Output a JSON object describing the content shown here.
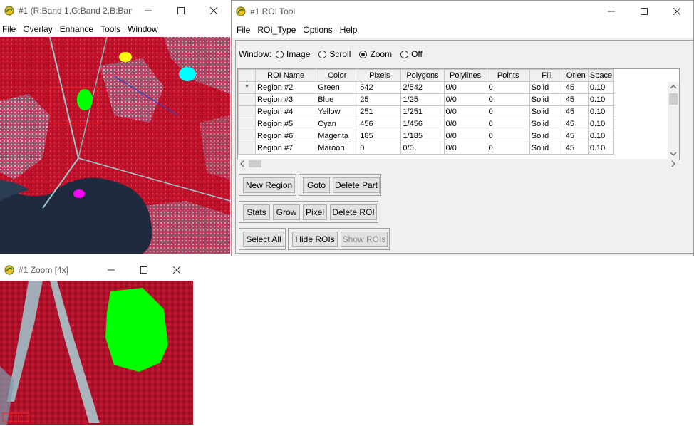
{
  "image_window": {
    "title": "#1 (R:Band 1,G:Band 2,B:Ban...",
    "menu": [
      "File",
      "Overlay",
      "Enhance",
      "Tools",
      "Window"
    ]
  },
  "zoom_window": {
    "title": "#1 Zoom [4x]"
  },
  "roi_window": {
    "title": "#1 ROI Tool",
    "menu": [
      "File",
      "ROI_Type",
      "Options",
      "Help"
    ],
    "window_label": "Window:",
    "window_options": [
      {
        "label": "Image",
        "selected": false
      },
      {
        "label": "Scroll",
        "selected": false
      },
      {
        "label": "Zoom",
        "selected": true
      },
      {
        "label": "Off",
        "selected": false
      }
    ],
    "columns": [
      "ROI Name",
      "Color",
      "Pixels",
      "Polygons",
      "Polylines",
      "Points",
      "Fill",
      "Orien",
      "Space"
    ],
    "current_row_marker": "*",
    "rows": [
      [
        "Region #2",
        "Green",
        "542",
        "2/542",
        "0/0",
        "0",
        "Solid",
        "45",
        "0.10"
      ],
      [
        "Region #3",
        "Blue",
        "25",
        "1/25",
        "0/0",
        "0",
        "Solid",
        "45",
        "0.10"
      ],
      [
        "Region #4",
        "Yellow",
        "251",
        "1/251",
        "0/0",
        "0",
        "Solid",
        "45",
        "0.10"
      ],
      [
        "Region #5",
        "Cyan",
        "456",
        "1/456",
        "0/0",
        "0",
        "Solid",
        "45",
        "0.10"
      ],
      [
        "Region #6",
        "Magenta",
        "185",
        "1/185",
        "0/0",
        "0",
        "Solid",
        "45",
        "0.10"
      ],
      [
        "Region #7",
        "Maroon",
        "0",
        "0/0",
        "0/0",
        "0",
        "Solid",
        "45",
        "0.10"
      ]
    ],
    "buttons": {
      "new_region": "New Region",
      "goto": "Goto",
      "delete_part": "Delete Part",
      "stats": "Stats",
      "grow": "Grow",
      "pixel": "Pixel",
      "delete_roi": "Delete ROI",
      "select_all": "Select All",
      "hide_rois": "Hide ROIs",
      "show_rois": "Show ROIs"
    }
  },
  "colors": {
    "vegetation_red": "#c8102e",
    "water_dark": "#1d2a3d",
    "urban_cyan": "#9fd8d8",
    "roi_green": "#00ff00",
    "roi_yellow": "#ffff00",
    "roi_cyan": "#00ffff",
    "roi_magenta": "#ff00ff",
    "roi_blue": "#0000ff"
  }
}
